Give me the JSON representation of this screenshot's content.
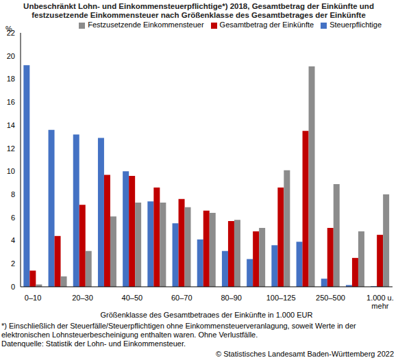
{
  "chart_data": {
    "type": "bar",
    "title": "Unbeschränkt Lohn- und Einkommensteuerpflichtige*) 2018, Gesamtbetrag der Einkünfte und festzusetzende Einkommensteuer nach Größenklasse des Gesamtbetrages der Einkünfte",
    "y_label": "%",
    "x_label": "Größenklasse des Gesamtbetrages der Einkünfte in 1.000 EUR",
    "footnote": "*) Einschließlich der Steuerfälle/Steuerpflichtigen ohne Einkommensteuerveranlagung,  soweit Werte in der elektronischen Lohnsteuerbescheinigung enthalten waren. Ohne Verlustfälle.",
    "source": "Datenquelle: Statistik der Lohn- und Einkommensteuer.",
    "copyright": "© Statistisches Landesamt Baden-Württemberg 2022",
    "categories": [
      "0–10",
      null,
      "20–30",
      null,
      "40–50",
      null,
      "60–70",
      null,
      "80–90",
      null,
      "100–125",
      null,
      "250–500",
      null,
      "1.000 u. mehr"
    ],
    "series": [
      {
        "name": "Steuerpflichtige",
        "color": "#4472c4",
        "values": [
          19.2,
          13.6,
          13.2,
          12.9,
          10.0,
          7.4,
          5.5,
          4.1,
          3.1,
          2.4,
          3.6,
          3.9,
          0.7,
          0.15,
          0.05
        ]
      },
      {
        "name": "Gesamtbetrag der Einkünfte",
        "color": "#c00000",
        "values": [
          1.4,
          4.4,
          7.1,
          9.7,
          9.6,
          8.6,
          7.6,
          6.6,
          5.7,
          4.8,
          8.6,
          13.5,
          5.1,
          2.5,
          4.5
        ]
      },
      {
        "name": "Festzusetzende Einkommensteuer",
        "color": "#8c8c8c",
        "values": [
          0.2,
          0.9,
          3.1,
          6.1,
          7.3,
          7.3,
          6.9,
          6.4,
          5.8,
          5.1,
          10.1,
          19.1,
          8.9,
          4.8,
          8.0
        ]
      }
    ],
    "ylim": [
      0,
      22
    ],
    "yticks": [
      0,
      2,
      4,
      6,
      8,
      10,
      12,
      14,
      16,
      18,
      20,
      22
    ],
    "grid": false,
    "legend": "top right"
  }
}
